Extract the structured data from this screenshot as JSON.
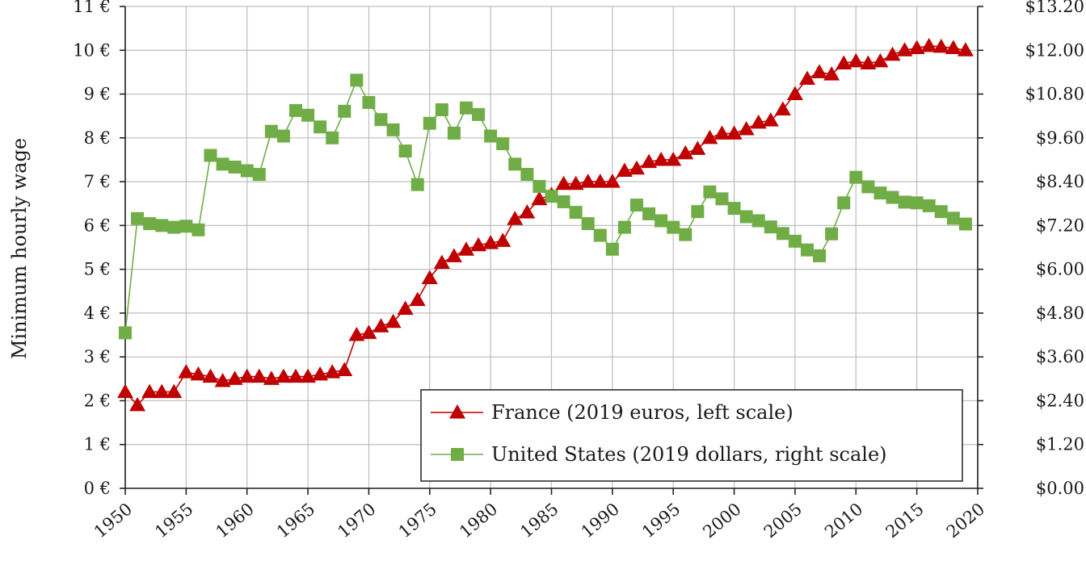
{
  "chart_data": {
    "type": "line",
    "ylabel": "Minimum hourly wage",
    "xlim": [
      1950,
      2020
    ],
    "ylim_left": [
      0,
      11
    ],
    "ylim_right": [
      0,
      13.2
    ],
    "x_ticks": [
      "1950",
      "1955",
      "1960",
      "1965",
      "1970",
      "1975",
      "1980",
      "1985",
      "1990",
      "1995",
      "2000",
      "2005",
      "2010",
      "2015",
      "2020"
    ],
    "left_ticks": [
      "0 €",
      "1 €",
      "2 €",
      "3 €",
      "4 €",
      "5 €",
      "6 €",
      "7 €",
      "8 €",
      "9 €",
      "10 €",
      "11 €"
    ],
    "right_ticks": [
      "$0.00",
      "$1.20",
      "$2.40",
      "$3.60",
      "$4.80",
      "$6.00",
      "$7.20",
      "$8.40",
      "$9.60",
      "$10.80",
      "$12.00",
      "$13.20"
    ],
    "grid": true,
    "legend_position": "bottom-right",
    "series": [
      {
        "name": "France (2019 euros, left scale)",
        "axis": "left",
        "color": "#c00000",
        "marker": "triangle",
        "x": [
          1950,
          1951,
          1952,
          1953,
          1954,
          1955,
          1956,
          1957,
          1958,
          1959,
          1960,
          1961,
          1962,
          1963,
          1964,
          1965,
          1966,
          1967,
          1968,
          1969,
          1970,
          1971,
          1972,
          1973,
          1974,
          1975,
          1976,
          1977,
          1978,
          1979,
          1980,
          1981,
          1982,
          1983,
          1984,
          1985,
          1986,
          1987,
          1988,
          1989,
          1990,
          1991,
          1992,
          1993,
          1994,
          1995,
          1996,
          1997,
          1998,
          1999,
          2000,
          2001,
          2002,
          2003,
          2004,
          2005,
          2006,
          2007,
          2008,
          2009,
          2010,
          2011,
          2012,
          2013,
          2014,
          2015,
          2016,
          2017,
          2018,
          2019
        ],
        "values": [
          2.2,
          1.9,
          2.2,
          2.2,
          2.2,
          2.65,
          2.6,
          2.55,
          2.45,
          2.5,
          2.55,
          2.55,
          2.5,
          2.55,
          2.55,
          2.55,
          2.6,
          2.65,
          2.7,
          3.5,
          3.55,
          3.7,
          3.8,
          4.1,
          4.3,
          4.8,
          5.15,
          5.3,
          5.45,
          5.55,
          5.6,
          5.65,
          6.15,
          6.3,
          6.6,
          6.7,
          6.95,
          6.95,
          7.0,
          7.0,
          7.0,
          7.25,
          7.3,
          7.45,
          7.5,
          7.5,
          7.65,
          7.75,
          8.0,
          8.1,
          8.1,
          8.2,
          8.35,
          8.4,
          8.65,
          9.0,
          9.35,
          9.5,
          9.45,
          9.7,
          9.75,
          9.7,
          9.75,
          9.9,
          10.0,
          10.05,
          10.1,
          10.08,
          10.05,
          10.0
        ]
      },
      {
        "name": "United States (2019 dollars, right scale)",
        "axis": "right",
        "color": "#70ad47",
        "marker": "square",
        "x": [
          1950,
          1951,
          1952,
          1953,
          1954,
          1955,
          1956,
          1957,
          1958,
          1959,
          1960,
          1961,
          1962,
          1963,
          1964,
          1965,
          1966,
          1967,
          1968,
          1969,
          1970,
          1971,
          1972,
          1973,
          1974,
          1975,
          1976,
          1977,
          1978,
          1979,
          1980,
          1981,
          1982,
          1983,
          1984,
          1985,
          1986,
          1987,
          1988,
          1989,
          1990,
          1991,
          1992,
          1993,
          1994,
          1995,
          1996,
          1997,
          1998,
          1999,
          2000,
          2001,
          2002,
          2003,
          2004,
          2005,
          2006,
          2007,
          2008,
          2009,
          2010,
          2011,
          2012,
          2013,
          2014,
          2015,
          2016,
          2017,
          2018,
          2019
        ],
        "values": [
          4.26,
          7.39,
          7.25,
          7.2,
          7.15,
          7.18,
          7.08,
          9.12,
          8.88,
          8.8,
          8.7,
          8.6,
          9.78,
          9.65,
          10.35,
          10.22,
          9.9,
          9.6,
          10.33,
          11.18,
          10.57,
          10.1,
          9.82,
          9.24,
          8.32,
          10.0,
          10.37,
          9.73,
          10.42,
          10.24,
          9.65,
          9.44,
          8.88,
          8.6,
          8.27,
          8.0,
          7.85,
          7.56,
          7.25,
          6.93,
          6.55,
          7.15,
          7.76,
          7.52,
          7.33,
          7.15,
          6.95,
          7.58,
          8.12,
          7.93,
          7.67,
          7.44,
          7.33,
          7.16,
          6.98,
          6.77,
          6.53,
          6.37,
          6.97,
          7.82,
          8.52,
          8.26,
          8.09,
          7.97,
          7.84,
          7.82,
          7.74,
          7.58,
          7.4,
          7.24
        ]
      }
    ]
  }
}
